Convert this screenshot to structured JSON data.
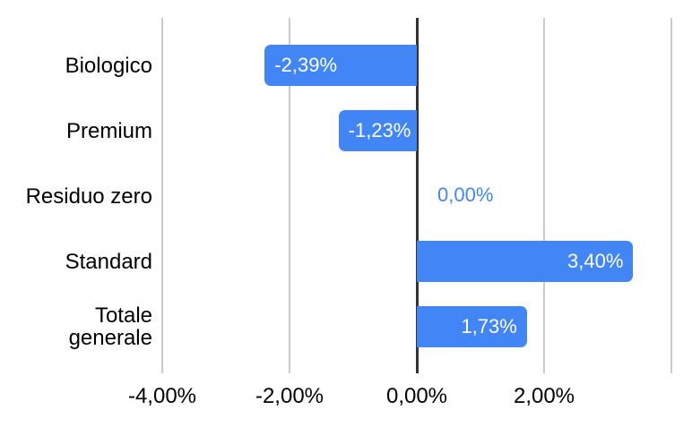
{
  "chart_data": {
    "type": "bar",
    "orientation": "horizontal",
    "title": "",
    "xlabel": "",
    "ylabel": "",
    "legend": "none",
    "grid": true,
    "xlim": [
      -4.45,
      4.0
    ],
    "categories": [
      "Biologico",
      "Premium",
      "Residuo zero",
      "Standard",
      "Totale\ngenerale"
    ],
    "values": [
      -2.39,
      -1.23,
      0.0,
      3.4,
      1.73
    ],
    "value_labels": [
      "-2,39%",
      "-1,23%",
      "0,00%",
      "3,40%",
      "1,73%"
    ],
    "x_ticks": [
      {
        "value": -4,
        "label": "-4,00%"
      },
      {
        "value": -2,
        "label": "-2,00%"
      },
      {
        "value": 0,
        "label": "0,00%"
      },
      {
        "value": 2,
        "label": "2,00%"
      },
      {
        "value": 4,
        "label": ""
      }
    ],
    "colors": {
      "bar": "#4285f4",
      "bar_label_text": "#ffffff",
      "zero_value_label_text": "#4285f4",
      "gridline": "#cccccc",
      "zero_axis_line": "#333333",
      "axis_text": "#000000",
      "category_text": "#000000",
      "background": "#ffffff"
    }
  }
}
